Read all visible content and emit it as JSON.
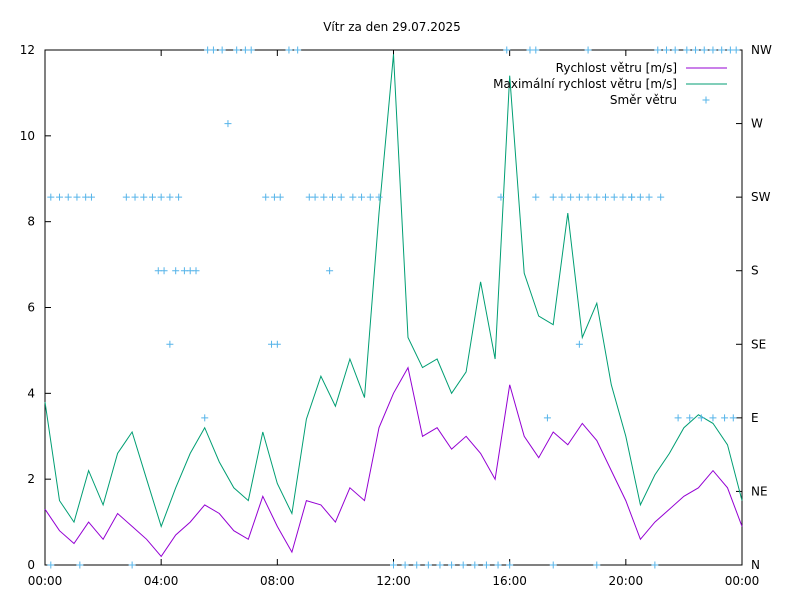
{
  "chart_data": {
    "type": "line",
    "title": "Vítr za den 29.07.2025",
    "x_ticks": [
      "00:00",
      "04:00",
      "08:00",
      "12:00",
      "16:00",
      "20:00",
      "00:00"
    ],
    "xlim_hours": [
      0,
      24
    ],
    "y_ticks": [
      "0",
      "2",
      "4",
      "6",
      "8",
      "10",
      "12"
    ],
    "ylim": [
      0,
      12
    ],
    "y2_ticks": [
      "N",
      "NE",
      "E",
      "SE",
      "S",
      "SW",
      "W",
      "NW"
    ],
    "y2lim": [
      0,
      7
    ],
    "grid": false,
    "legend_position": "top-right",
    "series": [
      {
        "name": "Rychlost větru [m/s]",
        "axis": "y",
        "color": "#9400d3",
        "x": [
          0,
          0.5,
          1,
          1.5,
          2,
          2.5,
          3,
          3.5,
          4,
          4.5,
          5,
          5.5,
          6,
          6.5,
          7,
          7.5,
          8,
          8.5,
          9,
          9.5,
          10,
          10.5,
          11,
          11.5,
          12,
          12.5,
          13,
          13.5,
          14,
          14.5,
          15,
          15.5,
          16,
          16.5,
          17,
          17.5,
          18,
          18.5,
          19,
          19.5,
          20,
          20.5,
          21,
          21.5,
          22,
          22.5,
          23,
          23.5,
          24
        ],
        "values": [
          1.3,
          0.8,
          0.5,
          1.0,
          0.6,
          1.2,
          0.9,
          0.6,
          0.2,
          0.7,
          1.0,
          1.4,
          1.2,
          0.8,
          0.6,
          1.6,
          0.9,
          0.3,
          1.5,
          1.4,
          1.0,
          1.8,
          1.5,
          3.2,
          4.0,
          4.6,
          3.0,
          3.2,
          2.7,
          3.0,
          2.6,
          2.0,
          4.2,
          3.0,
          2.5,
          3.1,
          2.8,
          3.3,
          2.9,
          2.2,
          1.5,
          0.6,
          1.0,
          1.3,
          1.6,
          1.8,
          2.2,
          1.8,
          0.9
        ]
      },
      {
        "name": "Maximální rychlost větru [m/s]",
        "axis": "y",
        "color": "#009e73",
        "x": [
          0,
          0.5,
          1,
          1.5,
          2,
          2.5,
          3,
          3.5,
          4,
          4.5,
          5,
          5.5,
          6,
          6.5,
          7,
          7.5,
          8,
          8.5,
          9,
          9.5,
          10,
          10.5,
          11,
          11.5,
          12,
          12.5,
          13,
          13.5,
          14,
          14.5,
          15,
          15.5,
          16,
          16.5,
          17,
          17.5,
          18,
          18.5,
          19,
          19.5,
          20,
          20.5,
          21,
          21.5,
          22,
          22.5,
          23,
          23.5,
          24
        ],
        "values": [
          3.8,
          1.5,
          1.0,
          2.2,
          1.4,
          2.6,
          3.1,
          2.0,
          0.9,
          1.8,
          2.6,
          3.2,
          2.4,
          1.8,
          1.5,
          3.1,
          1.9,
          1.2,
          3.4,
          4.4,
          3.7,
          4.8,
          3.9,
          8.2,
          11.9,
          5.3,
          4.6,
          4.8,
          4.0,
          4.5,
          6.6,
          4.8,
          11.4,
          6.8,
          5.8,
          5.6,
          8.2,
          5.3,
          6.1,
          4.2,
          3.0,
          1.4,
          2.1,
          2.6,
          3.2,
          3.5,
          3.3,
          2.8,
          1.5
        ]
      },
      {
        "name": "Směr větru",
        "axis": "y2",
        "color": "#56b4e9",
        "style": "points",
        "x": [
          0.2,
          0.5,
          0.8,
          1.1,
          1.4,
          1.6,
          2.8,
          3.1,
          3.4,
          3.7,
          4.0,
          4.3,
          4.6,
          3.9,
          4.1,
          4.5,
          4.8,
          5.0,
          5.2,
          4.3,
          5.6,
          5.8,
          6.1,
          6.3,
          6.6,
          6.9,
          7.1,
          7.6,
          7.9,
          8.1,
          8.4,
          8.7,
          9.1,
          9.3,
          9.6,
          9.9,
          10.2,
          10.6,
          10.9,
          11.2,
          11.5,
          7.8,
          8.0,
          9.8,
          0.2,
          1.2,
          3.0,
          5.5,
          12.0,
          12.4,
          12.8,
          13.2,
          13.6,
          14.0,
          14.4,
          14.8,
          15.2,
          15.6,
          16.0,
          17.5,
          19.0,
          21.0,
          15.7,
          15.9,
          16.7,
          16.9,
          17.5,
          17.8,
          18.1,
          18.4,
          18.7,
          19.0,
          19.3,
          19.6,
          19.9,
          20.2,
          20.5,
          20.8,
          21.1,
          21.4,
          21.7,
          22.1,
          22.4,
          22.7,
          23.0,
          23.3,
          23.6,
          23.8,
          21.8,
          22.2,
          22.6,
          23.0,
          23.4,
          23.7,
          16.9,
          17.3,
          18.4,
          18.7,
          20.2,
          21.2
        ],
        "values": [
          5,
          5,
          5,
          5,
          5,
          5,
          5,
          5,
          5,
          5,
          5,
          5,
          5,
          4,
          4,
          4,
          4,
          4,
          4,
          3,
          7,
          7,
          7,
          6,
          7,
          7,
          7,
          5,
          5,
          5,
          7,
          7,
          5,
          5,
          5,
          5,
          5,
          5,
          5,
          5,
          5,
          3,
          3,
          4,
          0,
          0,
          0,
          2,
          0,
          0,
          0,
          0,
          0,
          0,
          0,
          0,
          0,
          0,
          0,
          0,
          0,
          0,
          5,
          7,
          7,
          5,
          5,
          5,
          5,
          5,
          5,
          5,
          5,
          5,
          5,
          5,
          5,
          5,
          7,
          7,
          7,
          7,
          7,
          7,
          7,
          7,
          7,
          7,
          2,
          2,
          2,
          2,
          2,
          2,
          7,
          2,
          3,
          7,
          5,
          5
        ]
      }
    ]
  }
}
